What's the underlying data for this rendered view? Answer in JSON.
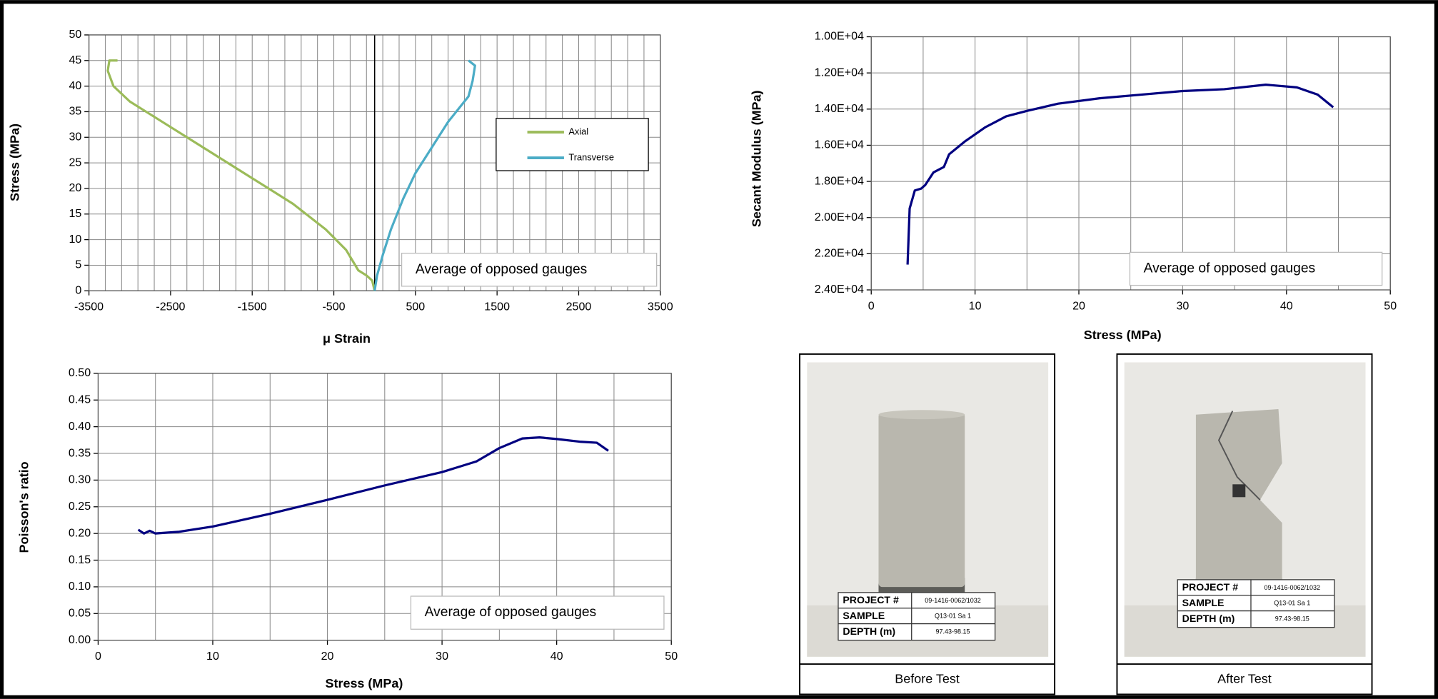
{
  "chart_data": [
    {
      "type": "line",
      "xlabel": "μ Strain",
      "ylabel": "Stress (MPa)",
      "xlim": [
        -3500,
        3500
      ],
      "xticks": [
        -3500,
        -2500,
        -1500,
        -500,
        500,
        1500,
        2500,
        3500
      ],
      "xminorticks": [
        -3500,
        -3300,
        -3100,
        -2900,
        -2700,
        -2500,
        -2300,
        -2100,
        -1900,
        -1700,
        -1500,
        -1300,
        -1100,
        -900,
        -700,
        -500,
        -300,
        -100,
        100,
        300,
        500,
        700,
        900,
        1100,
        1300,
        1500,
        1700,
        1900,
        2100,
        2300,
        2500,
        2700,
        2900,
        3100,
        3300,
        3500
      ],
      "ylim": [
        0,
        50
      ],
      "yticks": [
        0,
        5,
        10,
        15,
        20,
        25,
        30,
        35,
        40,
        45,
        50
      ],
      "grid": true,
      "legend": "right",
      "annotation": "Average of opposed gauges",
      "series": [
        {
          "name": "Axial",
          "color": "#9bbb59",
          "x": [
            0,
            -30,
            -100,
            -200,
            -350,
            -600,
            -1000,
            -1500,
            -2000,
            -2500,
            -2800,
            -3000,
            -3200,
            -3270,
            -3250,
            -3150
          ],
          "values": [
            0,
            2,
            3,
            4,
            8,
            12,
            17,
            22,
            27,
            32,
            35,
            37,
            40,
            43,
            45,
            45
          ]
        },
        {
          "name": "Transverse",
          "color": "#4bacc6",
          "x": [
            0,
            30,
            100,
            200,
            350,
            500,
            700,
            900,
            1050,
            1150,
            1200,
            1230,
            1150
          ],
          "values": [
            0,
            3,
            7,
            12,
            18,
            23,
            28,
            33,
            36,
            38,
            41,
            44,
            45
          ]
        }
      ]
    },
    {
      "type": "line",
      "xlabel": "Stress (MPa)",
      "ylabel": "Secant Modulus (MPa)",
      "xlim": [
        0,
        50
      ],
      "xticks": [
        0,
        10,
        20,
        30,
        40,
        50
      ],
      "xminorticks": [
        0,
        5,
        10,
        15,
        20,
        25,
        30,
        35,
        40,
        45,
        50
      ],
      "ylim": [
        10000,
        24000
      ],
      "y_inverted": true,
      "yticks": [
        {
          "value": 10000,
          "label": "1.00E+04"
        },
        {
          "value": 12000,
          "label": "1.20E+04"
        },
        {
          "value": 14000,
          "label": "1.40E+04"
        },
        {
          "value": 16000,
          "label": "1.60E+04"
        },
        {
          "value": 18000,
          "label": "1.80E+04"
        },
        {
          "value": 20000,
          "label": "2.00E+04"
        },
        {
          "value": 22000,
          "label": "2.20E+04"
        },
        {
          "value": 24000,
          "label": "2.40E+04"
        }
      ],
      "grid": true,
      "annotation": "Average of opposed gauges",
      "series": [
        {
          "color": "#000080",
          "x": [
            3.5,
            3.7,
            4.2,
            4.8,
            5.2,
            6,
            7,
            7.5,
            9,
            11,
            13,
            15,
            18,
            22,
            26,
            30,
            34,
            38,
            41,
            43,
            44.5
          ],
          "values": [
            22600,
            19500,
            18500,
            18400,
            18200,
            17500,
            17200,
            16500,
            15800,
            15000,
            14400,
            14100,
            13700,
            13400,
            13200,
            13000,
            12900,
            12650,
            12800,
            13200,
            13900
          ]
        }
      ]
    },
    {
      "type": "line",
      "xlabel": "Stress (MPa)",
      "ylabel": "Poisson's ratio",
      "xlim": [
        0,
        50
      ],
      "xticks": [
        0,
        10,
        20,
        30,
        40,
        50
      ],
      "xminorticks": [
        0,
        5,
        10,
        15,
        20,
        25,
        30,
        35,
        40,
        45,
        50
      ],
      "ylim": [
        0,
        0.5
      ],
      "yticks": [
        {
          "value": 0,
          "label": "0.00"
        },
        0.05,
        {
          "value": 0.1,
          "label": "0.10"
        },
        0.15,
        {
          "value": 0.2,
          "label": "0.20"
        },
        0.25,
        {
          "value": 0.3,
          "label": "0.30"
        },
        0.35,
        {
          "value": 0.4,
          "label": "0.40"
        },
        0.45,
        {
          "value": 0.5,
          "label": "0.50"
        }
      ],
      "grid": true,
      "annotation": "Average of opposed gauges",
      "series": [
        {
          "color": "#000080",
          "x": [
            3.5,
            4,
            4.5,
            5,
            7,
            10,
            15,
            20,
            25,
            30,
            33,
            35,
            37,
            38.5,
            40,
            42,
            43.5,
            44.5
          ],
          "values": [
            0.207,
            0.2,
            0.205,
            0.2,
            0.203,
            0.213,
            0.237,
            0.263,
            0.29,
            0.315,
            0.335,
            0.36,
            0.378,
            0.38,
            0.377,
            0.372,
            0.37,
            0.355
          ]
        }
      ]
    }
  ],
  "photos": [
    {
      "caption": "Before Test",
      "card": [
        [
          "PROJECT #",
          "09-1416-0062/1032"
        ],
        [
          "SAMPLE",
          "Q13-01 Sa 1"
        ],
        [
          "DEPTH (m)",
          "97.43-98.15"
        ]
      ]
    },
    {
      "caption": "After Test",
      "card": [
        [
          "PROJECT #",
          "09-1416-0062/1032"
        ],
        [
          "SAMPLE",
          "Q13-01 Sa 1"
        ],
        [
          "DEPTH (m)",
          "97.43-98.15"
        ]
      ]
    }
  ]
}
